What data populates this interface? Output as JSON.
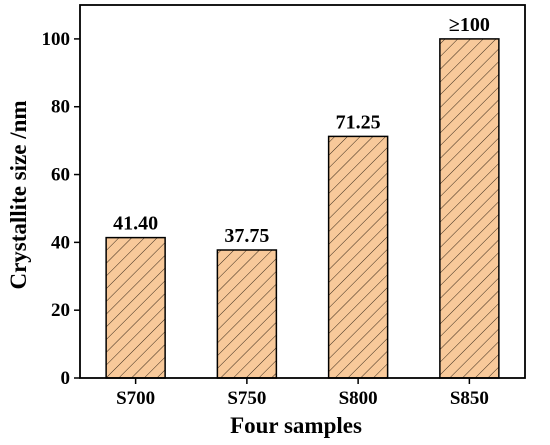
{
  "chart_data": {
    "type": "bar",
    "categories": [
      "S700",
      "S750",
      "S800",
      "S850"
    ],
    "values": [
      41.4,
      37.75,
      71.25,
      100
    ],
    "data_labels": [
      "41.40",
      "37.75",
      "71.25",
      "≥100"
    ],
    "title": "",
    "xlabel": "Four samples",
    "ylabel": "Crystallite size /nm",
    "ylim": [
      0,
      110
    ],
    "yticks": [
      "0",
      "20",
      "40",
      "60",
      "80",
      "100"
    ],
    "bar_fill": "#f8c99a",
    "bar_pattern": "diagonal-hatch",
    "grid": false
  }
}
